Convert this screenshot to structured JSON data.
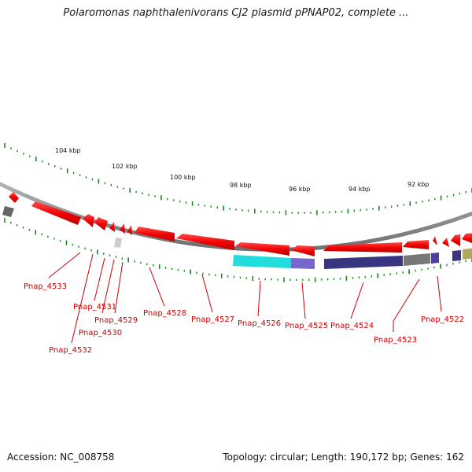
{
  "title": "Polaromonas naphthalenivorans CJ2 plasmid pPNAP02, complete ...",
  "footer": {
    "accession": "Accession: NC_008758",
    "stats": "Topology: circular; Length: 190,172 bp; Genes: 162"
  },
  "scale_labels": [
    "104 kbp",
    "102 kbp",
    "100 kbp",
    "98 kbp",
    "96 kbp",
    "94 kbp",
    "92 kbp"
  ],
  "gene_labels": [
    "Pnap_4533",
    "Pnap_4531",
    "Pnap_4529",
    "Pnap_4530",
    "Pnap_4532",
    "Pnap_4528",
    "Pnap_4527",
    "Pnap_4526",
    "Pnap_4525",
    "Pnap_4524",
    "Pnap_4523",
    "Pnap_4522"
  ],
  "colors": {
    "gene_red": "#ee0000",
    "backbone": "#888888",
    "tick_green": "#1a8a1a",
    "domain_cyan": "#22dddd",
    "domain_lavender": "#7766cc",
    "domain_navy": "#3a3580",
    "domain_gray": "#777777",
    "domain_olive": "#b0a860",
    "label_red": "#cc0000"
  }
}
